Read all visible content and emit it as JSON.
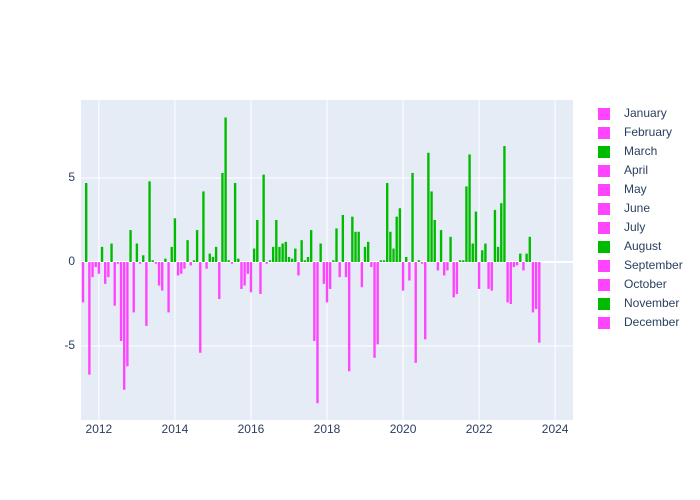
{
  "chart_data": {
    "type": "bar",
    "positive_color": "#00bb00",
    "negative_color": "#ff44ff",
    "xlim": [
      2011.53,
      2024.47
    ],
    "xticks": [
      2012,
      2014,
      2016,
      2018,
      2020,
      2022,
      2024
    ],
    "ylim": [
      -9.4,
      9.64
    ],
    "yticks": [
      -5,
      0,
      5
    ],
    "grid": true,
    "legend": "right",
    "series": [
      {
        "name": "January",
        "color": "#ff44ff",
        "x": [
          2012,
          2013,
          2014,
          2015,
          2016,
          2017,
          2018,
          2019,
          2020,
          2021,
          2022,
          2023
        ],
        "values": [
          -0.7,
          1.1,
          2.6,
          0.3,
          -1.8,
          0.3,
          -2.4,
          0.9,
          -1.7,
          1.9,
          -1.6,
          -0.2
        ]
      },
      {
        "name": "February",
        "color": "#ff44ff",
        "x": [
          2012,
          2013,
          2014,
          2015,
          2016,
          2017,
          2018,
          2019,
          2020,
          2021,
          2022,
          2023
        ],
        "values": [
          0.9,
          -0.1,
          -0.8,
          0.9,
          0.8,
          0.2,
          -1.6,
          1.2,
          0.3,
          -0.8,
          0.7,
          0.5
        ]
      },
      {
        "name": "March",
        "color": "#00bb00",
        "x": [
          2012,
          2013,
          2014,
          2015,
          2016,
          2017,
          2018,
          2019,
          2020,
          2021,
          2022,
          2023
        ],
        "values": [
          -1.3,
          0.4,
          -0.7,
          -2.2,
          2.5,
          0.8,
          0.1,
          -0.3,
          -1.1,
          -0.5,
          1.1,
          -0.5
        ]
      },
      {
        "name": "April",
        "color": "#ff44ff",
        "x": [
          2012,
          2013,
          2014,
          2015,
          2016,
          2017,
          2018,
          2019,
          2020,
          2021,
          2022,
          2023
        ],
        "values": [
          -0.9,
          -3.8,
          -0.4,
          5.3,
          -1.9,
          -0.8,
          2.0,
          -5.7,
          5.3,
          1.5,
          -1.6,
          0.5
        ]
      },
      {
        "name": "May",
        "color": "#ff44ff",
        "x": [
          2012,
          2013,
          2014,
          2015,
          2016,
          2017,
          2018,
          2019,
          2020,
          2021,
          2022,
          2023
        ],
        "values": [
          1.1,
          4.8,
          1.3,
          8.6,
          5.2,
          1.3,
          -0.9,
          -4.9,
          -6.0,
          -2.1,
          -1.7,
          1.5
        ]
      },
      {
        "name": "June",
        "color": "#ff44ff",
        "x": [
          2012,
          2013,
          2014,
          2015,
          2016,
          2017,
          2018,
          2019,
          2020,
          2021,
          2022,
          2023
        ],
        "values": [
          -2.6,
          0.1,
          -0.2,
          0.1,
          -0.1,
          0.1,
          2.8,
          0.1,
          0.1,
          -1.9,
          3.1,
          -3.0
        ]
      },
      {
        "name": "July",
        "color": "#ff44ff",
        "x": [
          2012,
          2013,
          2014,
          2015,
          2016,
          2017,
          2018,
          2019,
          2020,
          2021,
          2022,
          2023
        ],
        "values": [
          -0.1,
          -0.1,
          0.1,
          -0.1,
          0.1,
          0.3,
          -0.9,
          0.1,
          -0.1,
          0.1,
          0.9,
          -2.8
        ]
      },
      {
        "name": "August",
        "color": "#00bb00",
        "x": [
          2011,
          2012,
          2013,
          2014,
          2015,
          2016,
          2017,
          2018,
          2019,
          2020,
          2021,
          2022,
          2023
        ],
        "values": [
          -2.4,
          -4.7,
          -1.4,
          1.9,
          4.7,
          0.9,
          1.9,
          -6.5,
          4.7,
          -4.6,
          0.1,
          3.5,
          -4.8
        ]
      },
      {
        "name": "September",
        "color": "#ff44ff",
        "x": [
          2011,
          2012,
          2013,
          2014,
          2015,
          2016,
          2017,
          2018,
          2019,
          2020,
          2021,
          2022
        ],
        "values": [
          4.7,
          -7.6,
          -1.7,
          -5.4,
          0.2,
          2.5,
          -4.7,
          2.7,
          1.8,
          6.5,
          4.5,
          6.9
        ]
      },
      {
        "name": "October",
        "color": "#ff44ff",
        "x": [
          2011,
          2012,
          2013,
          2014,
          2015,
          2016,
          2017,
          2018,
          2019,
          2020,
          2021,
          2022
        ],
        "values": [
          -6.7,
          -6.2,
          0.2,
          4.2,
          -1.6,
          0.9,
          -8.4,
          1.8,
          0.8,
          4.2,
          6.4,
          -2.4
        ]
      },
      {
        "name": "November",
        "color": "#00bb00",
        "x": [
          2011,
          2012,
          2013,
          2014,
          2015,
          2016,
          2017,
          2018,
          2019,
          2020,
          2021,
          2022
        ],
        "values": [
          -0.9,
          1.9,
          -3.0,
          -0.4,
          -1.4,
          1.1,
          1.1,
          1.8,
          2.7,
          2.5,
          1.1,
          -2.5
        ]
      },
      {
        "name": "December",
        "color": "#ff44ff",
        "x": [
          2011,
          2012,
          2013,
          2014,
          2015,
          2016,
          2017,
          2018,
          2019,
          2020,
          2021,
          2022
        ],
        "values": [
          -0.3,
          -3.0,
          0.9,
          0.5,
          -0.7,
          1.2,
          -1.3,
          -1.5,
          3.2,
          -0.5,
          3.0,
          -0.3
        ]
      }
    ]
  }
}
